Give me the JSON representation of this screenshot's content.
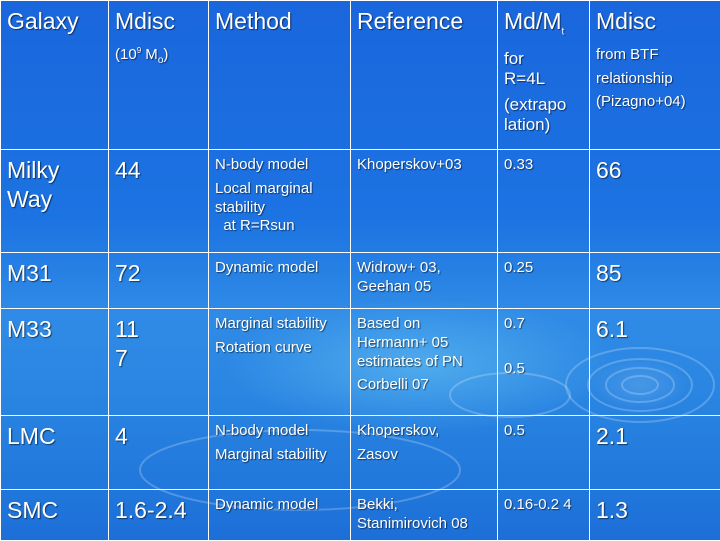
{
  "header": {
    "galaxy": "Galaxy",
    "mdisc_title": "Mdisc",
    "mdisc_units_open": "(10",
    "mdisc_units_exp": "9",
    "mdisc_units_m": " M",
    "mdisc_units_sun": "o",
    "mdisc_units_close": ")",
    "method": "Method",
    "reference": "Reference",
    "ratio_main": "Md/M",
    "ratio_sub": "t",
    "ratio_note1": "for",
    "ratio_note2": "R=4L",
    "ratio_note3": "(extrapo lation)",
    "btf_title": "Mdisc",
    "btf_note1": "from BTF",
    "btf_note2": "relationship",
    "btf_note3": "(Pizagno+04)"
  },
  "rows": [
    {
      "galaxy": [
        "Milky",
        "Way"
      ],
      "mdisc": [
        "44"
      ],
      "method": [
        "N-body model",
        "Local marginal stability",
        "  at R=Rsun"
      ],
      "reference": [
        "Khoperskov+03"
      ],
      "ratio": [
        "0.33"
      ],
      "btf": "66"
    },
    {
      "galaxy": [
        "M31"
      ],
      "mdisc": [
        "72"
      ],
      "method": [
        "Dynamic model"
      ],
      "reference": [
        "Widrow+ 03, Geehan 05"
      ],
      "ratio": [
        "0.25"
      ],
      "btf": "85"
    },
    {
      "galaxy": [
        "M33"
      ],
      "mdisc": [
        "11",
        "7"
      ],
      "method": [
        "Marginal stability",
        "Rotation curve"
      ],
      "reference": [
        "Based on Hermann+ 05 estimates of PN",
        "Corbelli 07"
      ],
      "ratio": [
        "0.7",
        "0.5"
      ],
      "btf": "6.1"
    },
    {
      "galaxy": [
        "LMC"
      ],
      "mdisc": [
        "4"
      ],
      "method": [
        "N-body model",
        "Marginal stability"
      ],
      "reference": [
        "Khoperskov,",
        "Zasov"
      ],
      "ratio": [
        "0.5"
      ],
      "btf": "2.1"
    },
    {
      "galaxy": [
        "SMC"
      ],
      "mdisc": [
        "1.6-2.4"
      ],
      "method": [
        "Dynamic model"
      ],
      "reference": [
        "Bekki, Stanimirovich 08"
      ],
      "ratio": [
        "0.16-0.2 4"
      ],
      "btf": "1.3"
    }
  ]
}
